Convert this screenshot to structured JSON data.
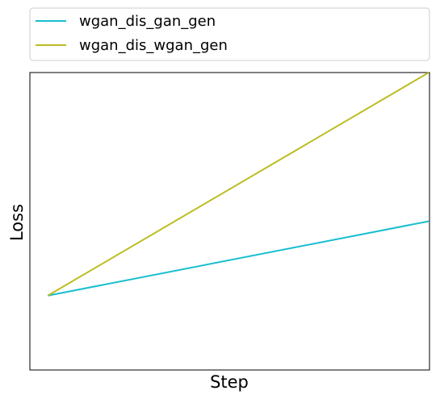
{
  "chart_data": {
    "type": "line",
    "title": "",
    "xlabel": "Step",
    "ylabel": "Loss",
    "x": [
      0,
      1
    ],
    "xlim": [
      -0.047,
      1.002
    ],
    "ylim": [
      0,
      1
    ],
    "grid": false,
    "legend": {
      "placement": "top-left, above plot"
    },
    "series": [
      {
        "name": "wgan_dis_gan_gen",
        "color": "#17becf",
        "values": [
          0.25,
          0.5
        ]
      },
      {
        "name": "wgan_dis_wgan_gen",
        "color": "#bcbd22",
        "values": [
          0.25,
          1.0
        ]
      }
    ]
  }
}
